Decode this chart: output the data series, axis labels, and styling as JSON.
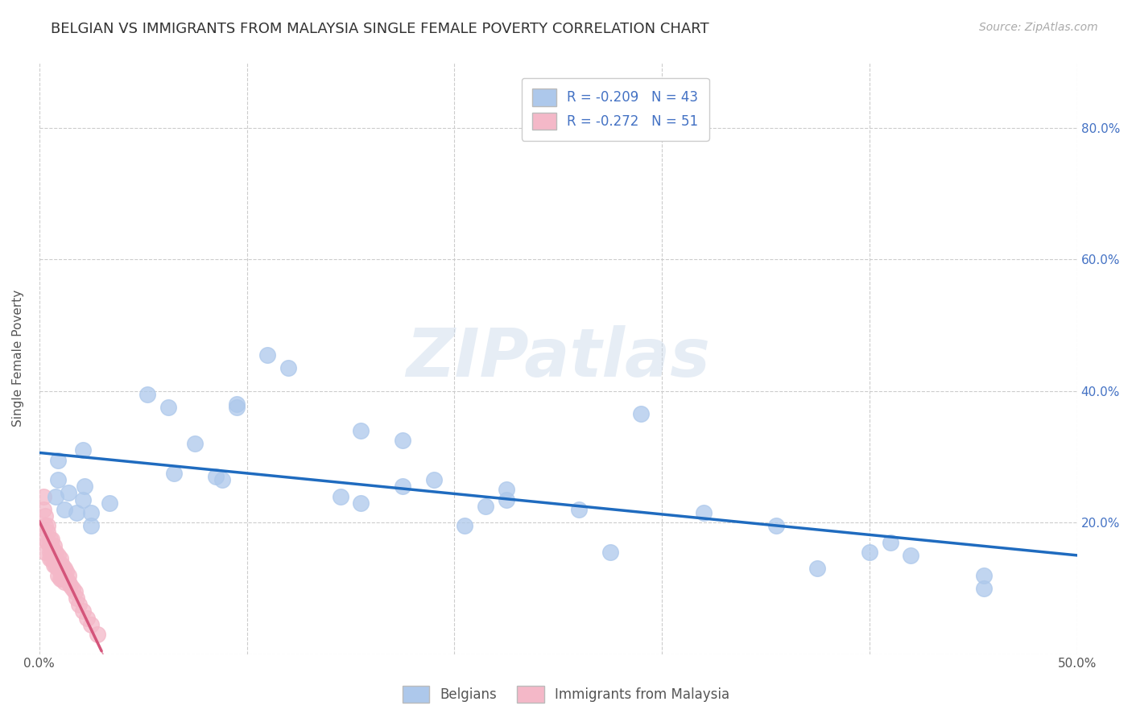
{
  "title": "BELGIAN VS IMMIGRANTS FROM MALAYSIA SINGLE FEMALE POVERTY CORRELATION CHART",
  "source": "Source: ZipAtlas.com",
  "ylabel": "Single Female Poverty",
  "xlim": [
    0.0,
    0.5
  ],
  "ylim": [
    0.0,
    0.9
  ],
  "legend1_label": "R = -0.209   N = 43",
  "legend2_label": "R = -0.272   N = 51",
  "belgian_color": "#adc8eb",
  "malaysia_color": "#f4b8c8",
  "trend_belgian_color": "#1f6bbf",
  "trend_malaysia_color": "#d4547a",
  "watermark": "ZIPatlas",
  "belgians_label": "Belgians",
  "malaysia_label": "Immigrants from Malaysia",
  "belgian_scatter_x": [
    0.021,
    0.009,
    0.009,
    0.022,
    0.014,
    0.008,
    0.021,
    0.034,
    0.012,
    0.025,
    0.018,
    0.025,
    0.052,
    0.062,
    0.095,
    0.075,
    0.065,
    0.085,
    0.088,
    0.11,
    0.12,
    0.095,
    0.155,
    0.175,
    0.145,
    0.155,
    0.19,
    0.175,
    0.215,
    0.205,
    0.225,
    0.225,
    0.26,
    0.275,
    0.29,
    0.32,
    0.355,
    0.375,
    0.4,
    0.41,
    0.42,
    0.455,
    0.455
  ],
  "belgian_scatter_y": [
    0.31,
    0.295,
    0.265,
    0.255,
    0.245,
    0.24,
    0.235,
    0.23,
    0.22,
    0.215,
    0.215,
    0.195,
    0.395,
    0.375,
    0.38,
    0.32,
    0.275,
    0.27,
    0.265,
    0.455,
    0.435,
    0.375,
    0.34,
    0.325,
    0.24,
    0.23,
    0.265,
    0.255,
    0.225,
    0.195,
    0.235,
    0.25,
    0.22,
    0.155,
    0.365,
    0.215,
    0.195,
    0.13,
    0.155,
    0.17,
    0.15,
    0.12,
    0.1
  ],
  "malaysia_scatter_x": [
    0.002,
    0.002,
    0.003,
    0.003,
    0.003,
    0.003,
    0.004,
    0.004,
    0.004,
    0.005,
    0.005,
    0.005,
    0.005,
    0.006,
    0.006,
    0.006,
    0.006,
    0.007,
    0.007,
    0.007,
    0.007,
    0.008,
    0.008,
    0.008,
    0.009,
    0.009,
    0.009,
    0.009,
    0.01,
    0.01,
    0.01,
    0.01,
    0.011,
    0.011,
    0.011,
    0.012,
    0.012,
    0.012,
    0.013,
    0.013,
    0.014,
    0.014,
    0.015,
    0.016,
    0.017,
    0.018,
    0.019,
    0.021,
    0.023,
    0.025,
    0.028
  ],
  "malaysia_scatter_y": [
    0.22,
    0.24,
    0.21,
    0.195,
    0.175,
    0.155,
    0.195,
    0.185,
    0.17,
    0.175,
    0.165,
    0.155,
    0.145,
    0.175,
    0.165,
    0.155,
    0.145,
    0.165,
    0.155,
    0.145,
    0.135,
    0.155,
    0.145,
    0.135,
    0.15,
    0.14,
    0.13,
    0.12,
    0.145,
    0.135,
    0.125,
    0.115,
    0.135,
    0.125,
    0.115,
    0.13,
    0.12,
    0.11,
    0.125,
    0.115,
    0.12,
    0.11,
    0.105,
    0.1,
    0.095,
    0.085,
    0.075,
    0.065,
    0.055,
    0.045,
    0.03
  ],
  "title_fontsize": 13,
  "axis_label_fontsize": 11,
  "tick_fontsize": 11,
  "legend_fontsize": 12
}
